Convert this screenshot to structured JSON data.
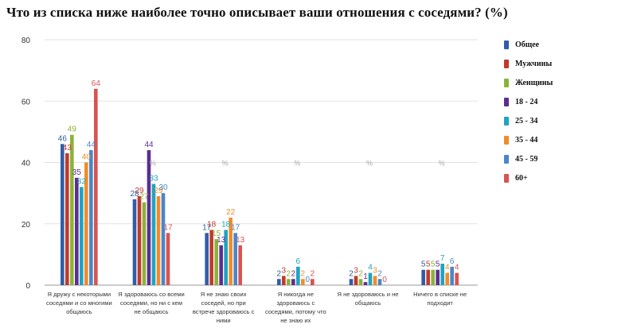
{
  "chart_data": {
    "type": "bar",
    "title": "Что из списка ниже наиболее точно описывает ваши отношения с соседями? (%)",
    "ylim": [
      0,
      80
    ],
    "yticks": [
      0,
      20,
      40,
      60,
      80
    ],
    "grid": true,
    "legend_position": "right",
    "categories": [
      [
        "Я дружу с некоторыми",
        "соседями и со многими",
        "общаюсь"
      ],
      [
        "Я здороваюсь со всеми",
        "соседями, но ни с кем",
        "не общаюсь"
      ],
      [
        "Я не знаю своих",
        "соседей, но при",
        "встрече здороваюсь с",
        "ними"
      ],
      [
        "Я никогда не",
        "здороваюсь с",
        "соседями, потому что",
        "не знаю их"
      ],
      [
        "Я не здороваюсь и не",
        "общаюсь"
      ],
      [
        "Ничего в списке не",
        "подходит"
      ]
    ],
    "series": [
      {
        "name": "Общее",
        "color": "#2f5da8",
        "values": [
          46,
          28,
          17,
          2,
          2,
          5
        ]
      },
      {
        "name": "Мужчины",
        "color": "#c0392b",
        "values": [
          43,
          29,
          18,
          3,
          3,
          5
        ]
      },
      {
        "name": "Женщины",
        "color": "#8cb23a",
        "values": [
          49,
          27,
          15,
          2,
          2,
          5
        ]
      },
      {
        "name": "18 - 24",
        "color": "#5b2e91",
        "values": [
          35,
          44,
          13,
          2,
          1,
          5
        ]
      },
      {
        "name": "25 - 34",
        "color": "#1fa3c0",
        "values": [
          32,
          33,
          18,
          6,
          4,
          7
        ]
      },
      {
        "name": "35 - 44",
        "color": "#f08c2a",
        "values": [
          40,
          29,
          22,
          2,
          3,
          4
        ]
      },
      {
        "name": "45 - 59",
        "color": "#4a86c8",
        "values": [
          44,
          30,
          17,
          0,
          2,
          6
        ]
      },
      {
        "name": "60+",
        "color": "#d9534f",
        "values": [
          64,
          17,
          13,
          2,
          0,
          4
        ]
      }
    ],
    "annotations": [
      "%",
      "%",
      "%",
      "%",
      "%"
    ]
  }
}
